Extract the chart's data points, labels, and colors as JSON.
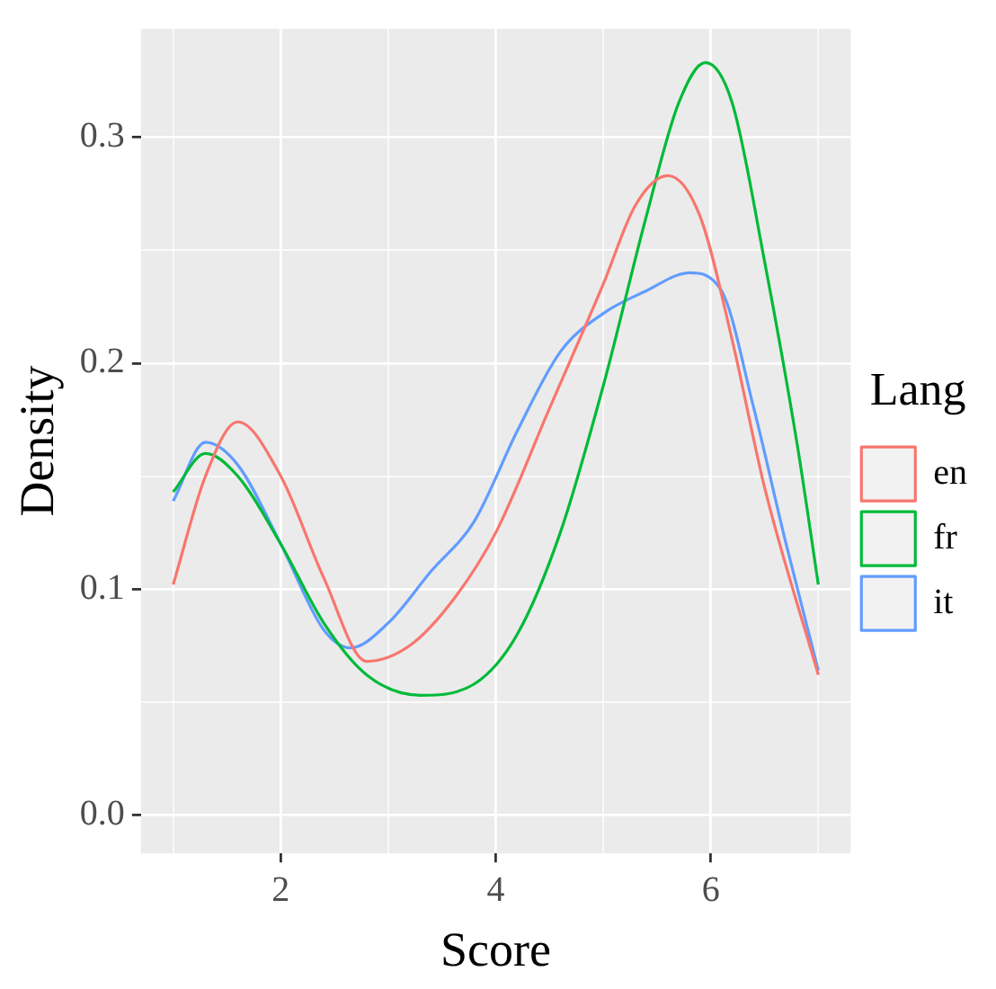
{
  "chart_data": {
    "type": "line",
    "xlabel": "Score",
    "ylabel": "Density",
    "legend_title": "Lang",
    "legend": "right",
    "grid": true,
    "marker": "none",
    "line_style": "solid",
    "xlim": [
      0.7,
      7.3
    ],
    "ylim": [
      -0.017,
      0.348
    ],
    "xticks": [
      {
        "value": 1,
        "label": null
      },
      2,
      {
        "value": 3,
        "label": null
      },
      4,
      {
        "value": 5,
        "label": null
      },
      6,
      {
        "value": 7,
        "label": null
      }
    ],
    "yticks": [
      {
        "value": 0,
        "label": "0.0"
      },
      {
        "value": 0.05,
        "label": null
      },
      0.1,
      {
        "value": 0.15,
        "label": null
      },
      0.2,
      {
        "value": 0.25,
        "label": null
      },
      0.3
    ],
    "series": [
      {
        "name": "en",
        "color": "#f8766d",
        "x": [
          1,
          1.3,
          1.6,
          2,
          2.4,
          2.8,
          3.2,
          3.6,
          4,
          4.5,
          5,
          5.3,
          5.6,
          5.9,
          6.2,
          6.5,
          7
        ],
        "values": [
          0.102,
          0.15,
          0.174,
          0.15,
          0.105,
          0.068,
          0.075,
          0.095,
          0.125,
          0.18,
          0.235,
          0.27,
          0.283,
          0.265,
          0.21,
          0.145,
          0.062
        ]
      },
      {
        "name": "fr",
        "color": "#00ba38",
        "x": [
          1,
          1.3,
          1.6,
          2,
          2.4,
          2.8,
          3.3,
          3.8,
          4.2,
          4.6,
          5,
          5.4,
          5.7,
          5.95,
          6.2,
          6.5,
          6.8,
          7
        ],
        "values": [
          0.143,
          0.16,
          0.15,
          0.12,
          0.085,
          0.062,
          0.053,
          0.058,
          0.08,
          0.125,
          0.19,
          0.265,
          0.315,
          0.333,
          0.315,
          0.245,
          0.165,
          0.102
        ]
      },
      {
        "name": "it",
        "color": "#619cff",
        "x": [
          1,
          1.3,
          1.6,
          2,
          2.4,
          2.65,
          3,
          3.4,
          3.8,
          4.2,
          4.6,
          5,
          5.4,
          5.8,
          6.1,
          6.4,
          6.7,
          7
        ],
        "values": [
          0.139,
          0.165,
          0.155,
          0.12,
          0.082,
          0.074,
          0.085,
          0.108,
          0.13,
          0.17,
          0.205,
          0.222,
          0.232,
          0.24,
          0.232,
          0.18,
          0.12,
          0.064
        ]
      }
    ]
  }
}
